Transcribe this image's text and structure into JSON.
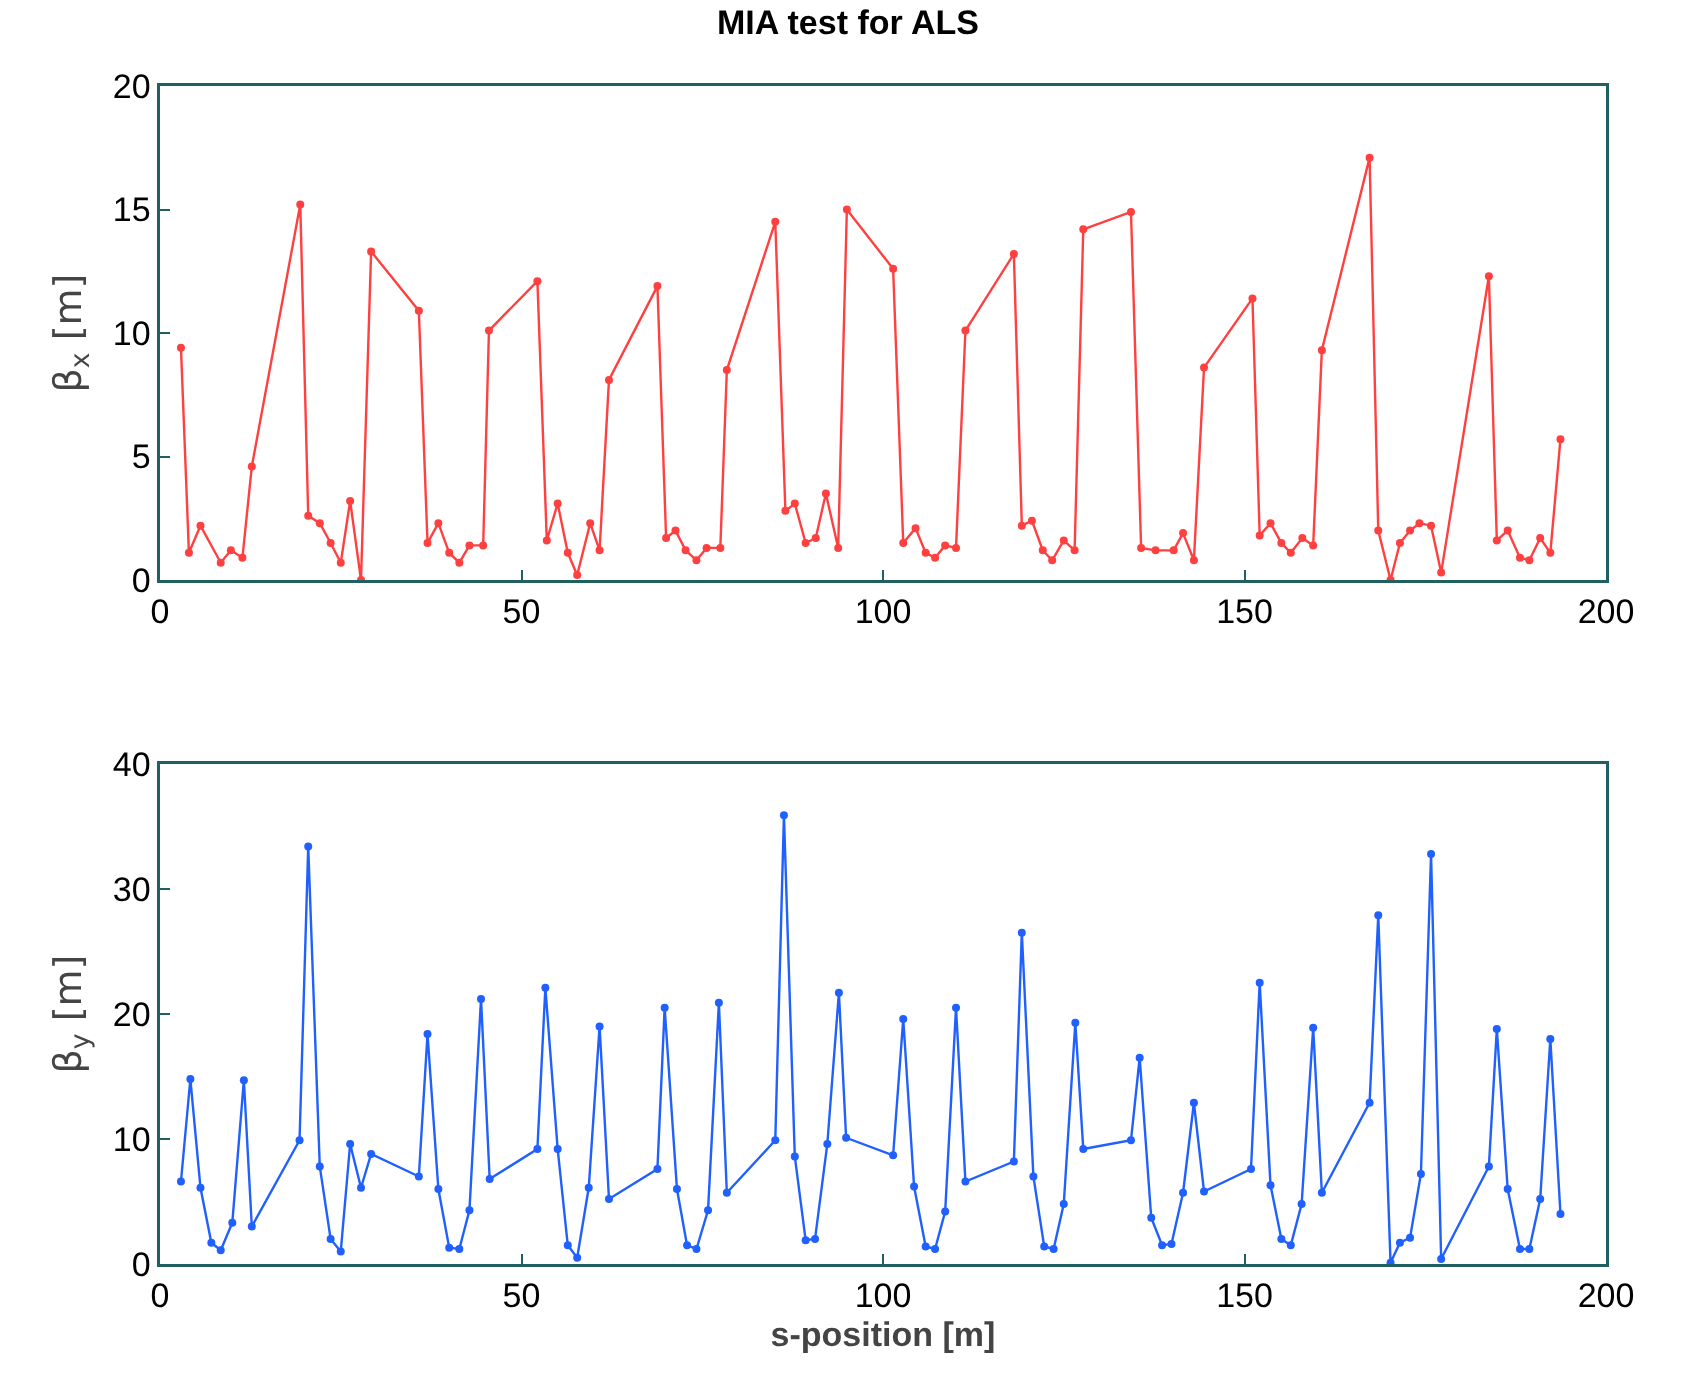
{
  "chart_data": [
    {
      "type": "line",
      "title": "MIA test for ALS",
      "ylabel": "β$_{x}$ [m]",
      "marker": "circle",
      "line_style": "solid",
      "grid": false,
      "xlim": [
        0,
        200
      ],
      "ylim": [
        0,
        20
      ],
      "xticks": [
        0,
        50,
        100,
        150,
        200
      ],
      "yticks": [
        0,
        5,
        10,
        15,
        20
      ],
      "x": [
        2.9,
        4.0,
        5.6,
        8.4,
        9.8,
        11.4,
        12.7,
        19.4,
        20.5,
        22.1,
        23.6,
        25.0,
        26.3,
        27.8,
        29.2,
        35.8,
        37.0,
        38.5,
        40.0,
        41.4,
        42.8,
        44.7,
        45.5,
        52.2,
        53.5,
        55.0,
        56.4,
        57.7,
        59.5,
        60.8,
        62.1,
        68.8,
        70.0,
        71.3,
        72.7,
        74.2,
        75.6,
        77.5,
        78.4,
        85.1,
        86.5,
        87.8,
        89.3,
        90.7,
        92.1,
        93.8,
        95.0,
        101.4,
        102.8,
        104.5,
        105.9,
        107.2,
        108.6,
        110.1,
        111.4,
        118.1,
        119.2,
        120.6,
        122.1,
        123.4,
        125.0,
        126.5,
        127.7,
        134.3,
        135.7,
        137.7,
        140.2,
        141.5,
        143.0,
        144.4,
        151.1,
        152.1,
        153.6,
        155.1,
        156.4,
        158.0,
        159.5,
        160.7,
        167.3,
        168.5,
        170.2,
        171.5,
        172.9,
        174.2,
        175.8,
        177.2,
        183.8,
        184.9,
        186.4,
        188.1,
        189.4,
        190.9,
        192.3,
        193.7
      ],
      "series": [
        {
          "color": "#ff4040",
          "values": [
            9.4,
            1.1,
            2.2,
            0.7,
            1.2,
            0.9,
            4.6,
            15.2,
            2.6,
            2.3,
            1.5,
            0.7,
            3.2,
            0,
            13.3,
            10.9,
            1.5,
            2.3,
            1.1,
            0.7,
            1.4,
            1.4,
            10.1,
            12.1,
            1.6,
            3.1,
            1.1,
            0.2,
            2.3,
            1.2,
            8.1,
            11.9,
            1.7,
            2.0,
            1.2,
            0.8,
            1.3,
            1.3,
            8.5,
            14.5,
            2.8,
            3.1,
            1.5,
            1.7,
            3.5,
            1.3,
            15.0,
            12.6,
            1.5,
            2.1,
            1.1,
            0.9,
            1.4,
            1.3,
            10.1,
            13.2,
            2.2,
            2.4,
            1.2,
            0.8,
            1.6,
            1.2,
            14.2,
            14.9,
            1.3,
            1.2,
            1.2,
            1.9,
            0.8,
            8.6,
            11.4,
            1.8,
            2.3,
            1.5,
            1.1,
            1.7,
            1.4,
            9.3,
            17.1,
            2.0,
            0,
            1.5,
            2.0,
            2.3,
            2.2,
            0.3,
            12.3,
            1.6,
            2.0,
            0.9,
            0.8,
            1.7,
            1.1,
            5.7
          ]
        }
      ]
    },
    {
      "type": "line",
      "xlabel": "s-position [m]",
      "ylabel": "β$_{y}$ [m]",
      "marker": "circle",
      "line_style": "solid",
      "grid": false,
      "xlim": [
        0,
        200
      ],
      "ylim": [
        0,
        40
      ],
      "xticks": [
        0,
        50,
        100,
        150,
        200
      ],
      "yticks": [
        0,
        10,
        20,
        30,
        40
      ],
      "x": [
        2.9,
        4.2,
        5.6,
        7.1,
        8.4,
        10.0,
        11.6,
        12.7,
        19.3,
        20.5,
        22.1,
        23.6,
        25.0,
        26.3,
        27.8,
        29.2,
        35.8,
        37.0,
        38.5,
        40.0,
        41.4,
        42.8,
        44.4,
        45.6,
        52.2,
        53.3,
        55.0,
        56.4,
        57.7,
        59.3,
        60.8,
        62.1,
        68.8,
        69.8,
        71.5,
        72.9,
        74.2,
        75.8,
        77.3,
        78.4,
        85.1,
        86.3,
        87.8,
        89.3,
        90.6,
        92.3,
        93.9,
        94.9,
        101.4,
        102.8,
        104.3,
        105.9,
        107.2,
        108.6,
        110.1,
        111.4,
        118.1,
        119.2,
        120.8,
        122.3,
        123.6,
        125.0,
        126.6,
        127.7,
        134.3,
        135.5,
        137.1,
        138.6,
        139.9,
        141.5,
        143.0,
        144.4,
        150.9,
        152.1,
        153.6,
        155.1,
        156.4,
        157.9,
        159.5,
        160.7,
        167.3,
        168.5,
        170.2,
        171.5,
        172.9,
        174.4,
        175.8,
        177.2,
        183.8,
        184.9,
        186.4,
        188.1,
        189.4,
        190.9,
        192.3,
        193.7
      ],
      "series": [
        {
          "color": "#2060ff",
          "values": [
            6.6,
            14.8,
            6.1,
            1.7,
            1.1,
            3.3,
            14.7,
            3.0,
            9.9,
            33.4,
            7.8,
            2.0,
            1.0,
            9.6,
            6.1,
            8.8,
            7.0,
            18.4,
            6.0,
            1.3,
            1.2,
            4.3,
            21.2,
            6.8,
            9.2,
            22.1,
            9.2,
            1.5,
            0.5,
            6.1,
            19.0,
            5.2,
            7.6,
            20.5,
            6.0,
            1.5,
            1.2,
            4.3,
            20.9,
            5.7,
            9.9,
            35.9,
            8.6,
            1.9,
            2.0,
            9.6,
            21.7,
            10.1,
            8.7,
            19.6,
            6.2,
            1.4,
            1.2,
            4.2,
            20.5,
            6.6,
            8.2,
            26.5,
            7.0,
            1.4,
            1.2,
            4.8,
            19.3,
            9.2,
            9.9,
            16.5,
            3.7,
            1.5,
            1.6,
            5.7,
            12.9,
            5.8,
            7.6,
            22.5,
            6.3,
            2.0,
            1.5,
            4.8,
            18.9,
            5.7,
            12.9,
            27.9,
            0.1,
            1.7,
            2.1,
            7.2,
            32.8,
            0.4,
            7.8,
            18.8,
            6.0,
            1.2,
            1.2,
            5.2,
            18.0,
            4.0
          ]
        }
      ]
    }
  ]
}
